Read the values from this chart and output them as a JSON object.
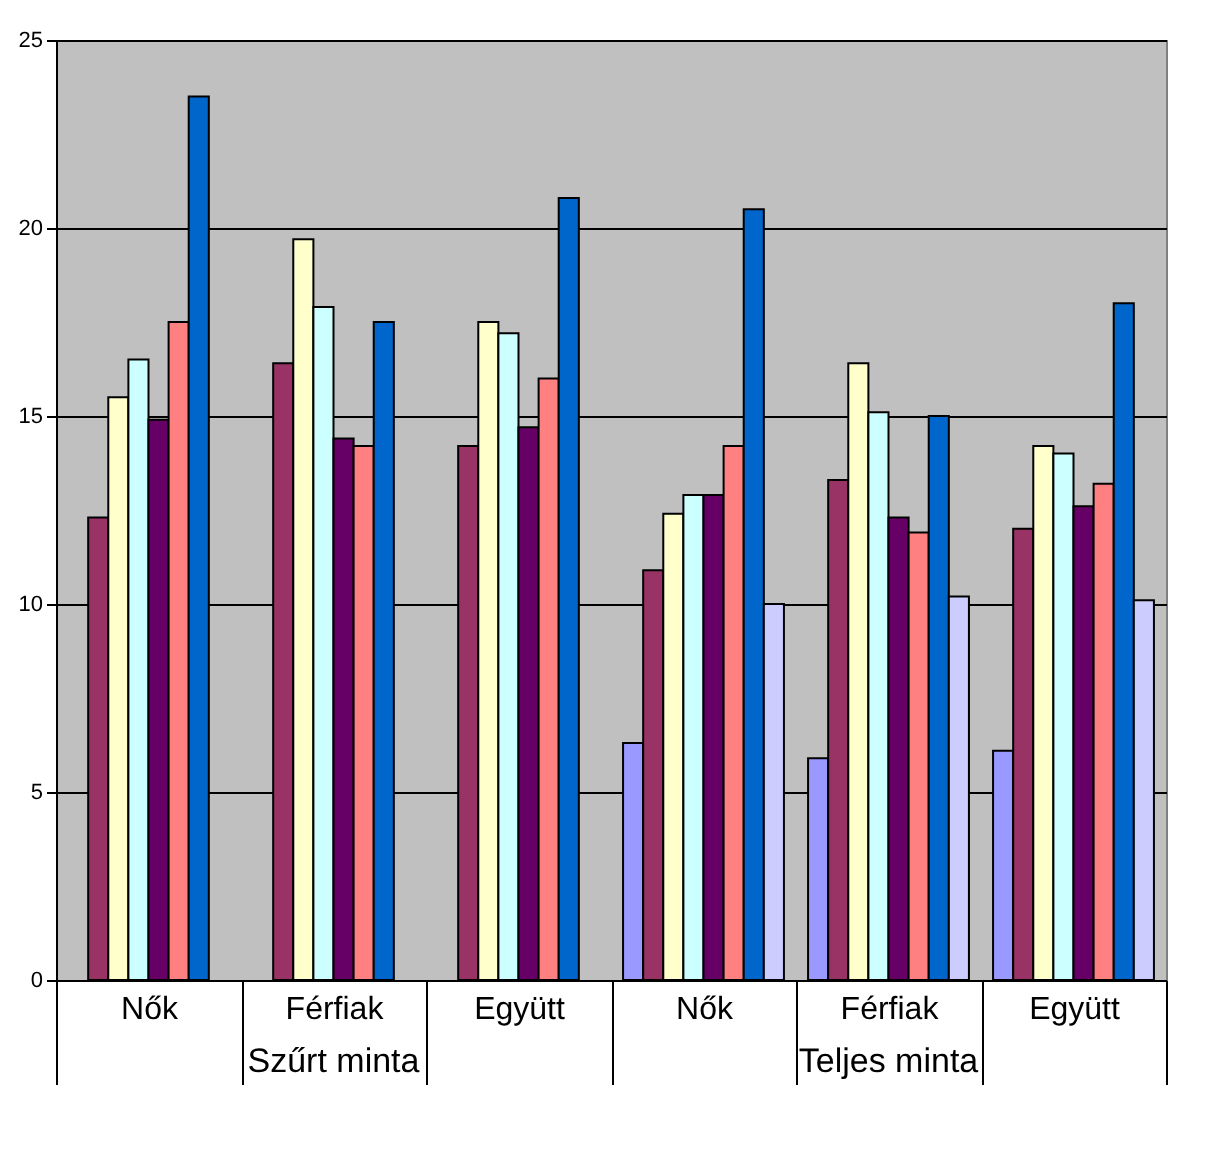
{
  "chart_data": {
    "type": "bar",
    "categories": [
      "Nők",
      "Férfiak",
      "Együtt",
      "Nők",
      "Férfiak",
      "Együtt"
    ],
    "series": [
      {
        "color": "#9999ff",
        "values": [
          null,
          null,
          null,
          6.3,
          5.9,
          6.1
        ]
      },
      {
        "color": "#993366",
        "values": [
          12.3,
          16.4,
          14.2,
          10.9,
          13.3,
          12.0
        ]
      },
      {
        "color": "#ffffcc",
        "values": [
          15.5,
          19.7,
          17.5,
          12.4,
          16.4,
          14.2
        ]
      },
      {
        "color": "#ccffff",
        "values": [
          16.5,
          17.9,
          17.2,
          12.9,
          15.1,
          14.0
        ]
      },
      {
        "color": "#660066",
        "values": [
          14.9,
          14.4,
          14.7,
          12.9,
          12.3,
          12.6
        ]
      },
      {
        "color": "#ff8080",
        "values": [
          17.5,
          14.2,
          16.0,
          14.2,
          11.9,
          13.2
        ]
      },
      {
        "color": "#0066cc",
        "values": [
          23.5,
          17.5,
          20.8,
          20.5,
          15.0,
          18.0
        ]
      },
      {
        "color": "#ccccff",
        "values": [
          null,
          null,
          null,
          10.0,
          10.2,
          10.1
        ]
      }
    ],
    "ylim": [
      0,
      25
    ],
    "yticks": [
      0,
      5,
      10,
      15,
      20,
      25
    ],
    "grid": "y",
    "annotations": [
      "Szűrt minta",
      "Teljes minta"
    ]
  }
}
